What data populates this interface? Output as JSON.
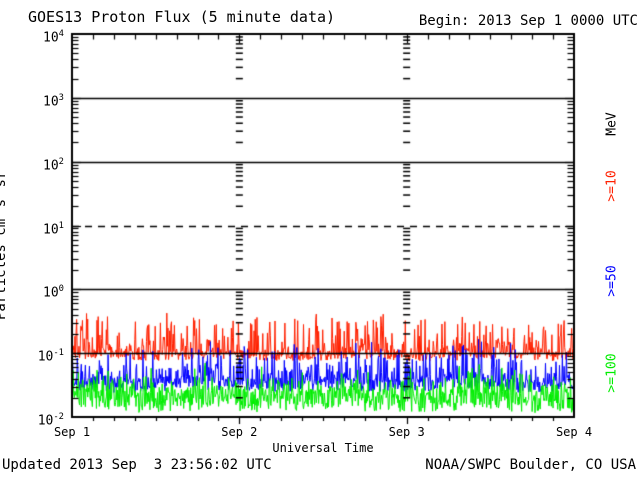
{
  "header": {
    "title": "GOES13 Proton Flux (5 minute data)",
    "begin_label": "Begin: 2013 Sep 1 0000 UTC"
  },
  "footer": {
    "updated": "Updated 2013 Sep  3 23:56:02 UTC",
    "credit": "NOAA/SWPC Boulder, CO USA"
  },
  "chart_data": {
    "type": "line",
    "title": "GOES13 Proton Flux (5 minute data)",
    "xlabel": "Universal Time",
    "ylabel_segments": [
      {
        "text": "Particles cm"
      },
      {
        "sup": "-2"
      },
      {
        "text": "s"
      },
      {
        "sup": "-1"
      },
      {
        "text": "sr"
      },
      {
        "sup": "-1"
      }
    ],
    "unit_label": "MeV",
    "y_scale": "log",
    "ylim": [
      0.01,
      10000
    ],
    "y_ticks": [
      {
        "mantissa": "10",
        "exp": "4"
      },
      {
        "mantissa": "10",
        "exp": "3"
      },
      {
        "mantissa": "10",
        "exp": "2"
      },
      {
        "mantissa": "10",
        "exp": "1"
      },
      {
        "mantissa": "10",
        "exp": "0"
      },
      {
        "mantissa": "10",
        "exp": "-1"
      },
      {
        "mantissa": "10",
        "exp": "-2"
      }
    ],
    "x_ticks": [
      {
        "label": "Sep 1",
        "day": 0
      },
      {
        "label": "Sep 2",
        "day": 1
      },
      {
        "label": "Sep 3",
        "day": 2
      },
      {
        "label": "Sep 4",
        "day": 3
      }
    ],
    "x_range_days": 3,
    "x_minor_ticks_per_day": 8,
    "begin_utc": "2013 Sep 1 0000 UTC",
    "sample_interval_minutes": 5,
    "samples_per_series": 864,
    "grid": {
      "solid_decade_exps": [
        3,
        2,
        0,
        -1
      ],
      "dashed_decade_exps": [
        1
      ],
      "vertical_dotted_days": [
        1,
        2
      ]
    },
    "series": [
      {
        "label": ">=10",
        "threshold_mev": 10,
        "color": "#ff2000",
        "approx_flux_mean": 0.095,
        "approx_flux_min": 0.074,
        "approx_flux_max": 0.45,
        "gen": {
          "seed": 7,
          "base": -1.11,
          "jitter": 0.15,
          "spike_pow": 5,
          "spike_amp": 0.62,
          "burst_prob": 0.03,
          "burst_amp": 0.22,
          "slow_amp": 0.02,
          "clip_min": -1.13
        }
      },
      {
        "label": ">=50",
        "threshold_mev": 50,
        "color": "#0000ff",
        "approx_flux_mean": 0.035,
        "approx_flux_min": 0.024,
        "approx_flux_max": 0.17,
        "gen": {
          "seed": 21,
          "base": -1.6,
          "jitter": 0.22,
          "spike_pow": 5,
          "spike_amp": 0.62,
          "burst_prob": 0.02,
          "burst_amp": 0.25,
          "slow_amp": 0.02,
          "clip_min": -1.62
        }
      },
      {
        "label": ">=100",
        "threshold_mev": 100,
        "color": "#00ee00",
        "approx_flux_mean": 0.016,
        "approx_flux_min": 0.01,
        "approx_flux_max": 0.065,
        "gen": {
          "seed": 33,
          "base": -1.92,
          "jitter": 0.36,
          "spike_pow": 4,
          "spike_amp": 0.4,
          "burst_prob": 0.02,
          "burst_amp": 0.18,
          "slow_amp": 0.02,
          "clip_min": -1.98
        }
      }
    ]
  }
}
